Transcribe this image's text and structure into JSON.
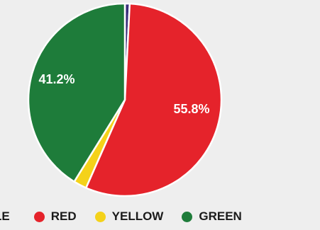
{
  "chart_data": {
    "type": "pie",
    "start_angle_deg": 0,
    "direction": "clockwise",
    "slices": [
      {
        "label": "PURPLE",
        "value": 0.8,
        "color": "#3a2f7a",
        "data_label": ""
      },
      {
        "label": "RED",
        "value": 55.8,
        "color": "#e5232b",
        "data_label": "55.8%"
      },
      {
        "label": "YELLOW",
        "value": 2.2,
        "color": "#f4d21a",
        "data_label": ""
      },
      {
        "label": "GREEN",
        "value": 41.2,
        "color": "#1e7c3a",
        "data_label": "41.2%"
      }
    ]
  },
  "legend": {
    "placement": "bottom",
    "items": [
      {
        "label": "LE",
        "color": "#3a2f7a"
      },
      {
        "label": "RED",
        "color": "#e5232b"
      },
      {
        "label": "YELLOW",
        "color": "#f4d21a"
      },
      {
        "label": "GREEN",
        "color": "#1e7c3a"
      }
    ]
  }
}
